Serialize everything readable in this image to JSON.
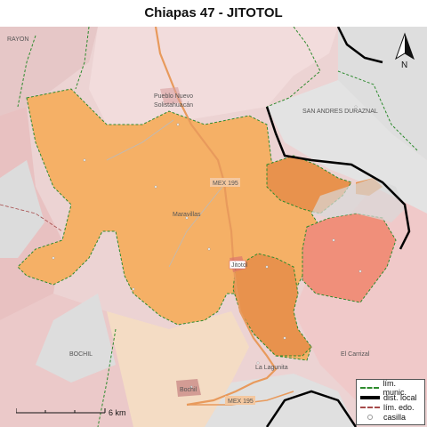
{
  "title": "Chiapas 47 - JITOTOL",
  "places": {
    "rayon": "RAYON",
    "pueblo_nuevo": "Pueblo Nuevo",
    "solistahuacan": "Solistahuacán",
    "san_andres": "SAN ANDRES DURAZNAL",
    "mex195_top": "MEX 195",
    "maravillas": "Maravillas",
    "jitotol": "Jitotol",
    "bochil": "BOCHIL",
    "la_lagunita": "La Lagunita",
    "el_carrizal": "El Carrizal",
    "bochil_town": "Bochil",
    "mex195_bottom": "MEX 195"
  },
  "legend": {
    "munic": "lím. munic.",
    "local": "dist. local",
    "edo": "lím. edo.",
    "casilla": "casilla"
  },
  "scale": {
    "label": "6 km"
  },
  "compass": {
    "label": "N"
  },
  "colors": {
    "district_main": "#f5b066",
    "district_dark": "#e8924d",
    "district_red": "#f08f7a",
    "background_pink": "#f1d1d1",
    "background_gray": "#dcdcdc",
    "road": "#e89a5c",
    "municipal_border": "#2e8b2e"
  }
}
